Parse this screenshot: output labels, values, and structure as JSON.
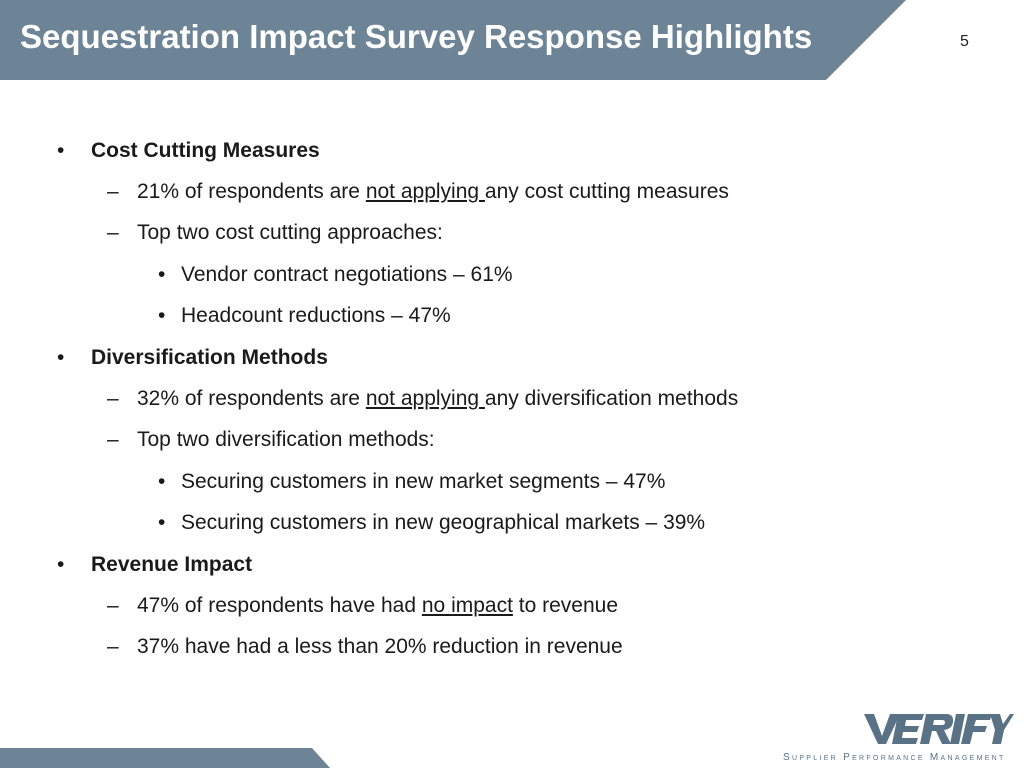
{
  "slide": {
    "title": "Sequestration Impact Survey Response Highlights",
    "page_number": "5"
  },
  "sections": [
    {
      "heading": "Cost Cutting Measures",
      "items": [
        {
          "pre": "21% of respondents are ",
          "u": "not applying ",
          "post": "any cost cutting measures"
        },
        {
          "text": "Top two cost cutting approaches:",
          "sub": [
            "Vendor contract negotiations – 61%",
            "Headcount reductions – 47%"
          ]
        }
      ]
    },
    {
      "heading": "Diversification Methods",
      "items": [
        {
          "pre": "32% of respondents are ",
          "u": "not applying ",
          "post": "any diversification methods"
        },
        {
          "text": "Top two diversification methods:",
          "sub": [
            "Securing customers in new market segments – 47%",
            "Securing customers in new geographical markets – 39%"
          ]
        }
      ]
    },
    {
      "heading": "Revenue Impact",
      "items": [
        {
          "pre": "47% of respondents have had ",
          "u": "no impact",
          "post": " to revenue"
        },
        {
          "text": "37% have had a less than 20% reduction in revenue"
        }
      ]
    }
  ],
  "glyphs": {
    "bullet": "•",
    "dash": "–"
  },
  "logo": {
    "name": "VERIFY",
    "tagline": "Supplier Performance Management",
    "color": "#5a7286"
  },
  "colors": {
    "banner": "#6d8497"
  }
}
